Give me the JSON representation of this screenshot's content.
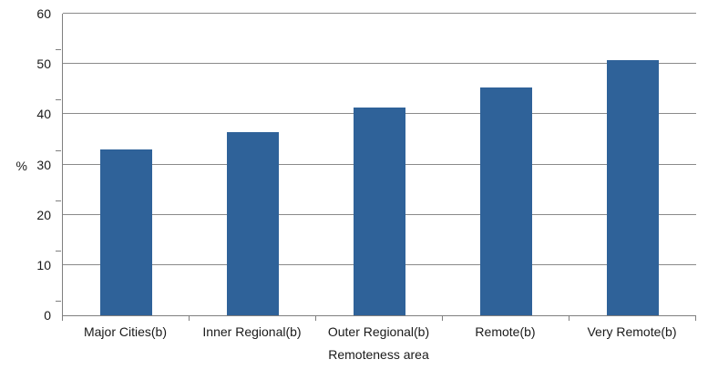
{
  "chart_data": {
    "type": "bar",
    "title": "",
    "categories": [
      "Major Cities(b)",
      "Inner Regional(b)",
      "Outer Regional(b)",
      "Remote(b)",
      "Very Remote(b)"
    ],
    "values": [
      33.0,
      36.5,
      41.4,
      45.4,
      50.8
    ],
    "xlabel": "Remoteness area",
    "ylabel": "%",
    "ylim": [
      0,
      60
    ],
    "yticks": [
      0,
      10,
      20,
      30,
      40,
      50,
      60
    ],
    "grid": true,
    "legend": false,
    "colors": {
      "bar_fill": "#2f6299",
      "axis_line": "#7f7f7f",
      "gridline": "#8a8a8a",
      "text": "#1a1a1a",
      "background": "#ffffff"
    }
  }
}
